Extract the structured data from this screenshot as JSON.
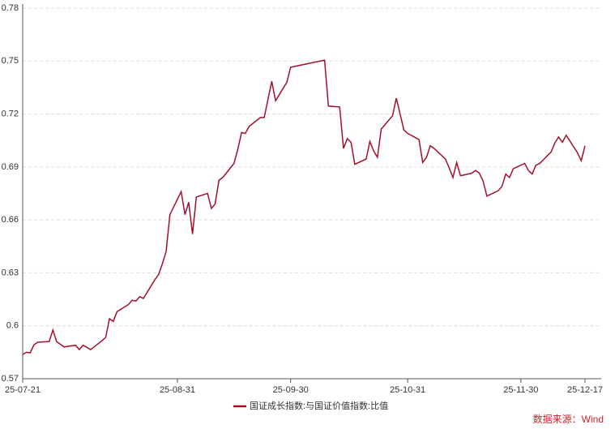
{
  "chart_data": {
    "type": "line",
    "series": [
      {
        "name": "国证成长指数:与国证价值指数:比值",
        "color": "#a3102a",
        "values": [
          0.5838,
          0.585,
          0.5847,
          0.5893,
          0.5907,
          0.5911,
          0.5976,
          0.591,
          0.5895,
          0.588,
          0.589,
          0.5865,
          0.589,
          0.5878,
          0.5865,
          0.5915,
          0.5935,
          0.604,
          0.6025,
          0.608,
          0.612,
          0.6145,
          0.614,
          0.6165,
          0.6155,
          0.626,
          0.629,
          0.635,
          0.642,
          0.663,
          0.676,
          0.663,
          0.67,
          0.652,
          0.673,
          0.675,
          0.6665,
          0.669,
          0.6825,
          0.684,
          0.692,
          0.7,
          0.7095,
          0.709,
          0.713,
          0.718,
          0.718,
          0.7285,
          0.7385,
          0.7275,
          0.738,
          0.7465,
          0.7505,
          0.7245,
          0.724,
          0.7005,
          0.706,
          0.704,
          0.6915,
          0.6945,
          0.7045,
          0.699,
          0.6955,
          0.7115,
          0.719,
          0.729,
          0.72,
          0.711,
          0.709,
          0.7055,
          0.6925,
          0.6955,
          0.702,
          0.7005,
          0.6945,
          0.6895,
          0.684,
          0.6925,
          0.685,
          0.6865,
          0.688,
          0.6865,
          0.682,
          0.6735,
          0.6765,
          0.679,
          0.686,
          0.684,
          0.689,
          0.692,
          0.688,
          0.686,
          0.691,
          0.692,
          0.6985,
          0.7035,
          0.707,
          0.704,
          0.708,
          0.698,
          0.6935,
          0.702
        ]
      }
    ],
    "x": [
      "25-07-21",
      "25-07-22",
      "25-07-23",
      "25-07-24",
      "25-07-25",
      "25-07-28",
      "25-07-29",
      "25-07-30",
      "25-07-31",
      "25-08-01",
      "25-08-04",
      "25-08-05",
      "25-08-06",
      "25-08-07",
      "25-08-08",
      "25-08-11",
      "25-08-12",
      "25-08-13",
      "25-08-14",
      "25-08-15",
      "25-08-18",
      "25-08-19",
      "25-08-20",
      "25-08-21",
      "25-08-22",
      "25-08-25",
      "25-08-26",
      "25-08-27",
      "25-08-28",
      "25-08-29",
      "25-09-01",
      "25-09-02",
      "25-09-03",
      "25-09-04",
      "25-09-05",
      "25-09-08",
      "25-09-09",
      "25-09-10",
      "25-09-11",
      "25-09-12",
      "25-09-15",
      "25-09-16",
      "25-09-17",
      "25-09-18",
      "25-09-19",
      "25-09-22",
      "25-09-23",
      "25-09-24",
      "25-09-25",
      "25-09-26",
      "25-09-29",
      "25-09-30",
      "25-10-09",
      "25-10-10",
      "25-10-13",
      "25-10-14",
      "25-10-15",
      "25-10-16",
      "25-10-17",
      "25-10-20",
      "25-10-21",
      "25-10-22",
      "25-10-23",
      "25-10-24",
      "25-10-27",
      "25-10-28",
      "25-10-29",
      "25-10-30",
      "25-10-31",
      "25-11-03",
      "25-11-04",
      "25-11-05",
      "25-11-06",
      "25-11-07",
      "25-11-10",
      "25-11-11",
      "25-11-12",
      "25-11-13",
      "25-11-14",
      "25-11-17",
      "25-11-18",
      "25-11-19",
      "25-11-20",
      "25-11-21",
      "25-11-24",
      "25-11-25",
      "25-11-26",
      "25-11-27",
      "25-11-28",
      "25-12-01",
      "25-12-02",
      "25-12-03",
      "25-12-04",
      "25-12-05",
      "25-12-08",
      "25-12-09",
      "25-12-10",
      "25-12-11",
      "25-12-12",
      "25-12-15",
      "25-12-16",
      "25-12-17"
    ],
    "xlim": [
      "25-07-21",
      "25-12-17"
    ],
    "xticks": [
      "25-07-21",
      "25-08-31",
      "25-09-30",
      "25-10-31",
      "25-11-30",
      "25-12-17"
    ],
    "ylim": [
      0.57,
      0.78
    ],
    "yticks": [
      0.57,
      0.6,
      0.63,
      0.66,
      0.69,
      0.72,
      0.75,
      0.78
    ],
    "grid": true,
    "legend": "bottom",
    "source": "数据来源：Wind"
  }
}
